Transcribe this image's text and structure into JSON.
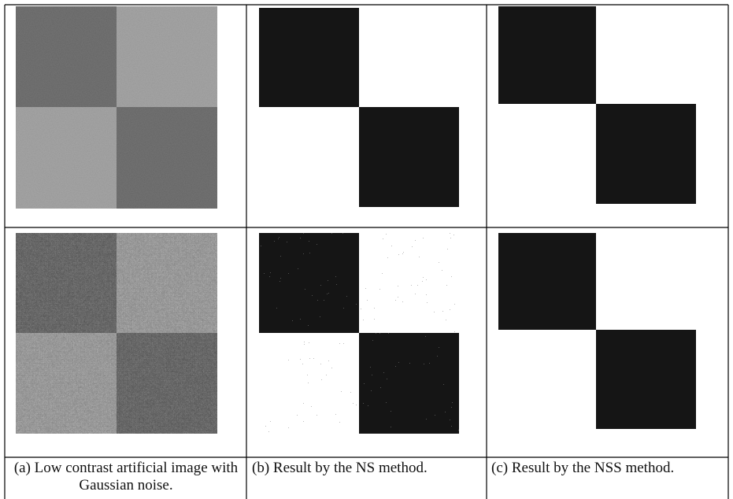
{
  "captions": [
    "(a) Low contrast artificial image with Gaussian noise.",
    "(b) Result by the NS method.",
    "(c) Result by the NSS method."
  ]
}
